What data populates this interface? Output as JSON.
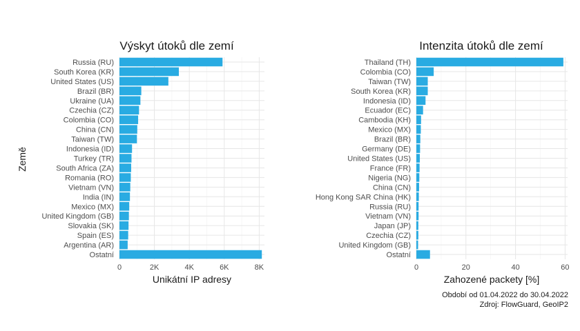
{
  "chart_data": [
    {
      "type": "bar",
      "orientation": "horizontal",
      "title": "Výskyt útoků dle zemí",
      "xlabel": "Unikátní IP adresy",
      "ylabel": "Země",
      "xlim": [
        0,
        8300
      ],
      "xticks": [
        0,
        2000,
        4000,
        6000,
        8000
      ],
      "xtick_labels": [
        "0",
        "2K",
        "4K",
        "6K",
        "8K"
      ],
      "grid": true,
      "bar_color": "#29abe2",
      "categories": [
        "Russia (RU)",
        "South Korea (KR)",
        "United States (US)",
        "Brazil (BR)",
        "Ukraine (UA)",
        "Czechia (CZ)",
        "Colombia (CO)",
        "China (CN)",
        "Taiwan (TW)",
        "Indonesia (ID)",
        "Turkey (TR)",
        "South Africa (ZA)",
        "Romania (RO)",
        "Vietnam (VN)",
        "India (IN)",
        "Mexico (MX)",
        "United Kingdom (GB)",
        "Slovakia (SK)",
        "Spain (ES)",
        "Argentina (AR)",
        "Ostatní"
      ],
      "values": [
        5900,
        3400,
        2800,
        1250,
        1200,
        1120,
        1070,
        1020,
        1000,
        720,
        690,
        670,
        650,
        620,
        600,
        560,
        540,
        520,
        500,
        470,
        8150
      ]
    },
    {
      "type": "bar",
      "orientation": "horizontal",
      "title": "Intenzita útoků dle zemí",
      "xlabel": "Zahozené packety [%]",
      "xlim": [
        0,
        61
      ],
      "xticks": [
        0,
        20,
        40,
        60
      ],
      "xtick_labels": [
        "0",
        "20",
        "40",
        "60"
      ],
      "grid": true,
      "bar_color": "#29abe2",
      "categories": [
        "Thailand (TH)",
        "Colombia (CO)",
        "Taiwan (TW)",
        "South Korea (KR)",
        "Indonesia (ID)",
        "Ecuador (EC)",
        "Cambodia (KH)",
        "Mexico (MX)",
        "Brazil (BR)",
        "Germany (DE)",
        "United States (US)",
        "France (FR)",
        "Nigeria (NG)",
        "China (CN)",
        "Hong Kong SAR China (HK)",
        "Russia (RU)",
        "Vietnam (VN)",
        "Japan (JP)",
        "Czechia (CZ)",
        "United Kingdom (GB)",
        "Ostatní"
      ],
      "values": [
        59.3,
        7.0,
        4.6,
        4.6,
        3.7,
        2.7,
        1.9,
        1.8,
        1.6,
        1.5,
        1.4,
        1.3,
        1.2,
        1.1,
        1.0,
        0.9,
        0.9,
        0.8,
        0.8,
        0.7,
        5.5
      ]
    }
  ],
  "caption": {
    "period": "Období od 01.04.2022 do 30.04.2022",
    "source": "Zdroj: FlowGuard, GeoIP2"
  }
}
